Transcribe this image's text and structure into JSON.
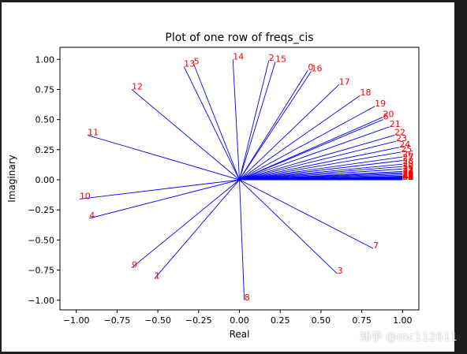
{
  "watermark": "知乎 @mc112611",
  "colors": {
    "line": "#0000ff",
    "label": "#ff0000",
    "axes": "#000000",
    "background": "#ffffff",
    "frame": "#1e1e1e"
  },
  "chart_data": {
    "type": "line",
    "title": "Plot of one row of freqs_cis",
    "xlabel": "Real",
    "ylabel": "Imaginary",
    "xlim": [
      -1.1,
      1.1
    ],
    "ylim": [
      -1.08,
      1.1
    ],
    "xticks": [
      -1.0,
      -0.75,
      -0.5,
      -0.25,
      0.0,
      0.25,
      0.5,
      0.75,
      1.0
    ],
    "xtick_labels": [
      "−1.00",
      "−0.75",
      "−0.50",
      "−0.25",
      "0.00",
      "0.25",
      "0.50",
      "0.75",
      "1.00"
    ],
    "yticks": [
      -1.0,
      -0.75,
      -0.5,
      -0.25,
      0.0,
      0.25,
      0.5,
      0.75,
      1.0
    ],
    "ytick_labels": [
      "−1.00",
      "−0.75",
      "−0.50",
      "−0.25",
      "0.00",
      "0.25",
      "0.50",
      "0.75",
      "1.00"
    ],
    "grid": false,
    "points": [
      {
        "label": "0",
        "x": 0.42,
        "y": 0.91
      },
      {
        "label": "1",
        "x": -0.52,
        "y": -0.82
      },
      {
        "label": "2",
        "x": 0.18,
        "y": 0.99
      },
      {
        "label": "3",
        "x": 0.6,
        "y": -0.78
      },
      {
        "label": "4",
        "x": -0.92,
        "y": -0.32
      },
      {
        "label": "5",
        "x": -0.28,
        "y": 0.96
      },
      {
        "label": "7",
        "x": 0.82,
        "y": -0.57
      },
      {
        "label": "8",
        "x": 0.03,
        "y": -1.0
      },
      {
        "label": "9",
        "x": -0.66,
        "y": -0.73
      },
      {
        "label": "10",
        "x": -0.98,
        "y": -0.16
      },
      {
        "label": "11",
        "x": -0.93,
        "y": 0.37
      },
      {
        "label": "12",
        "x": -0.66,
        "y": 0.75
      },
      {
        "label": "13",
        "x": -0.34,
        "y": 0.94
      },
      {
        "label": "14",
        "x": -0.04,
        "y": 1.0
      },
      {
        "label": "15",
        "x": 0.22,
        "y": 0.98
      },
      {
        "label": "16",
        "x": 0.44,
        "y": 0.9
      },
      {
        "label": "17",
        "x": 0.61,
        "y": 0.79
      },
      {
        "label": "18",
        "x": 0.74,
        "y": 0.7
      },
      {
        "label": "19",
        "x": 0.83,
        "y": 0.61
      },
      {
        "label": "20",
        "x": 0.88,
        "y": 0.52
      },
      {
        "label": "6",
        "x": 0.88,
        "y": 0.5
      },
      {
        "label": "21",
        "x": 0.92,
        "y": 0.44
      },
      {
        "label": "22",
        "x": 0.95,
        "y": 0.37
      },
      {
        "label": "23",
        "x": 0.96,
        "y": 0.32
      },
      {
        "label": "24",
        "x": 0.98,
        "y": 0.27
      },
      {
        "label": "25",
        "x": 0.99,
        "y": 0.23
      },
      {
        "label": "26",
        "x": 1.0,
        "y": 0.19
      },
      {
        "label": "27",
        "x": 1.0,
        "y": 0.16
      },
      {
        "label": "28",
        "x": 1.0,
        "y": 0.13
      },
      {
        "label": "29",
        "x": 1.0,
        "y": 0.11
      },
      {
        "label": "30",
        "x": 1.0,
        "y": 0.09
      },
      {
        "label": "31",
        "x": 1.0,
        "y": 0.07
      },
      {
        "label": "32",
        "x": 1.0,
        "y": 0.06
      },
      {
        "label": "33",
        "x": 1.0,
        "y": 0.05
      },
      {
        "label": "34",
        "x": 1.0,
        "y": 0.04
      },
      {
        "label": "35",
        "x": 1.0,
        "y": 0.03
      },
      {
        "label": "36",
        "x": 1.0,
        "y": 0.025
      },
      {
        "label": "37",
        "x": 1.0,
        "y": 0.02
      },
      {
        "label": "38",
        "x": 1.0,
        "y": 0.016
      },
      {
        "label": "39",
        "x": 1.0,
        "y": 0.013
      },
      {
        "label": "40",
        "x": 1.0,
        "y": 0.01
      },
      {
        "label": "41",
        "x": 1.0,
        "y": 0.008
      },
      {
        "label": "42",
        "x": 1.0,
        "y": 0.006
      },
      {
        "label": "43",
        "x": 1.0,
        "y": 0.005
      },
      {
        "label": "44",
        "x": 1.0,
        "y": 0.004
      },
      {
        "label": "45",
        "x": 1.0,
        "y": 0.003
      },
      {
        "label": "46",
        "x": 1.0,
        "y": 0.002
      },
      {
        "label": "47",
        "x": 1.0,
        "y": 0.0015
      },
      {
        "label": "48",
        "x": 1.0,
        "y": 0.001
      },
      {
        "label": "49",
        "x": 1.0,
        "y": 0.0008
      },
      {
        "label": "50",
        "x": 1.0,
        "y": 0.0006
      },
      {
        "label": "51",
        "x": 1.0,
        "y": 0.0005
      },
      {
        "label": "52",
        "x": 1.0,
        "y": 0.0004
      },
      {
        "label": "53",
        "x": 1.0,
        "y": 0.0003
      },
      {
        "label": "54",
        "x": 1.0,
        "y": 0.0002
      },
      {
        "label": "55",
        "x": 1.0,
        "y": 0.00015
      },
      {
        "label": "56",
        "x": 1.0,
        "y": 0.0001
      },
      {
        "label": "57",
        "x": 1.0,
        "y": 8e-05
      },
      {
        "label": "58",
        "x": 1.0,
        "y": 6e-05
      },
      {
        "label": "59",
        "x": 1.0,
        "y": 4e-05
      },
      {
        "label": "60",
        "x": 1.0,
        "y": 3e-05
      },
      {
        "label": "61",
        "x": 1.0,
        "y": 2e-05
      },
      {
        "label": "62",
        "x": 1.0,
        "y": 1e-05
      },
      {
        "label": "63",
        "x": 1.0,
        "y": 5e-06
      }
    ]
  }
}
